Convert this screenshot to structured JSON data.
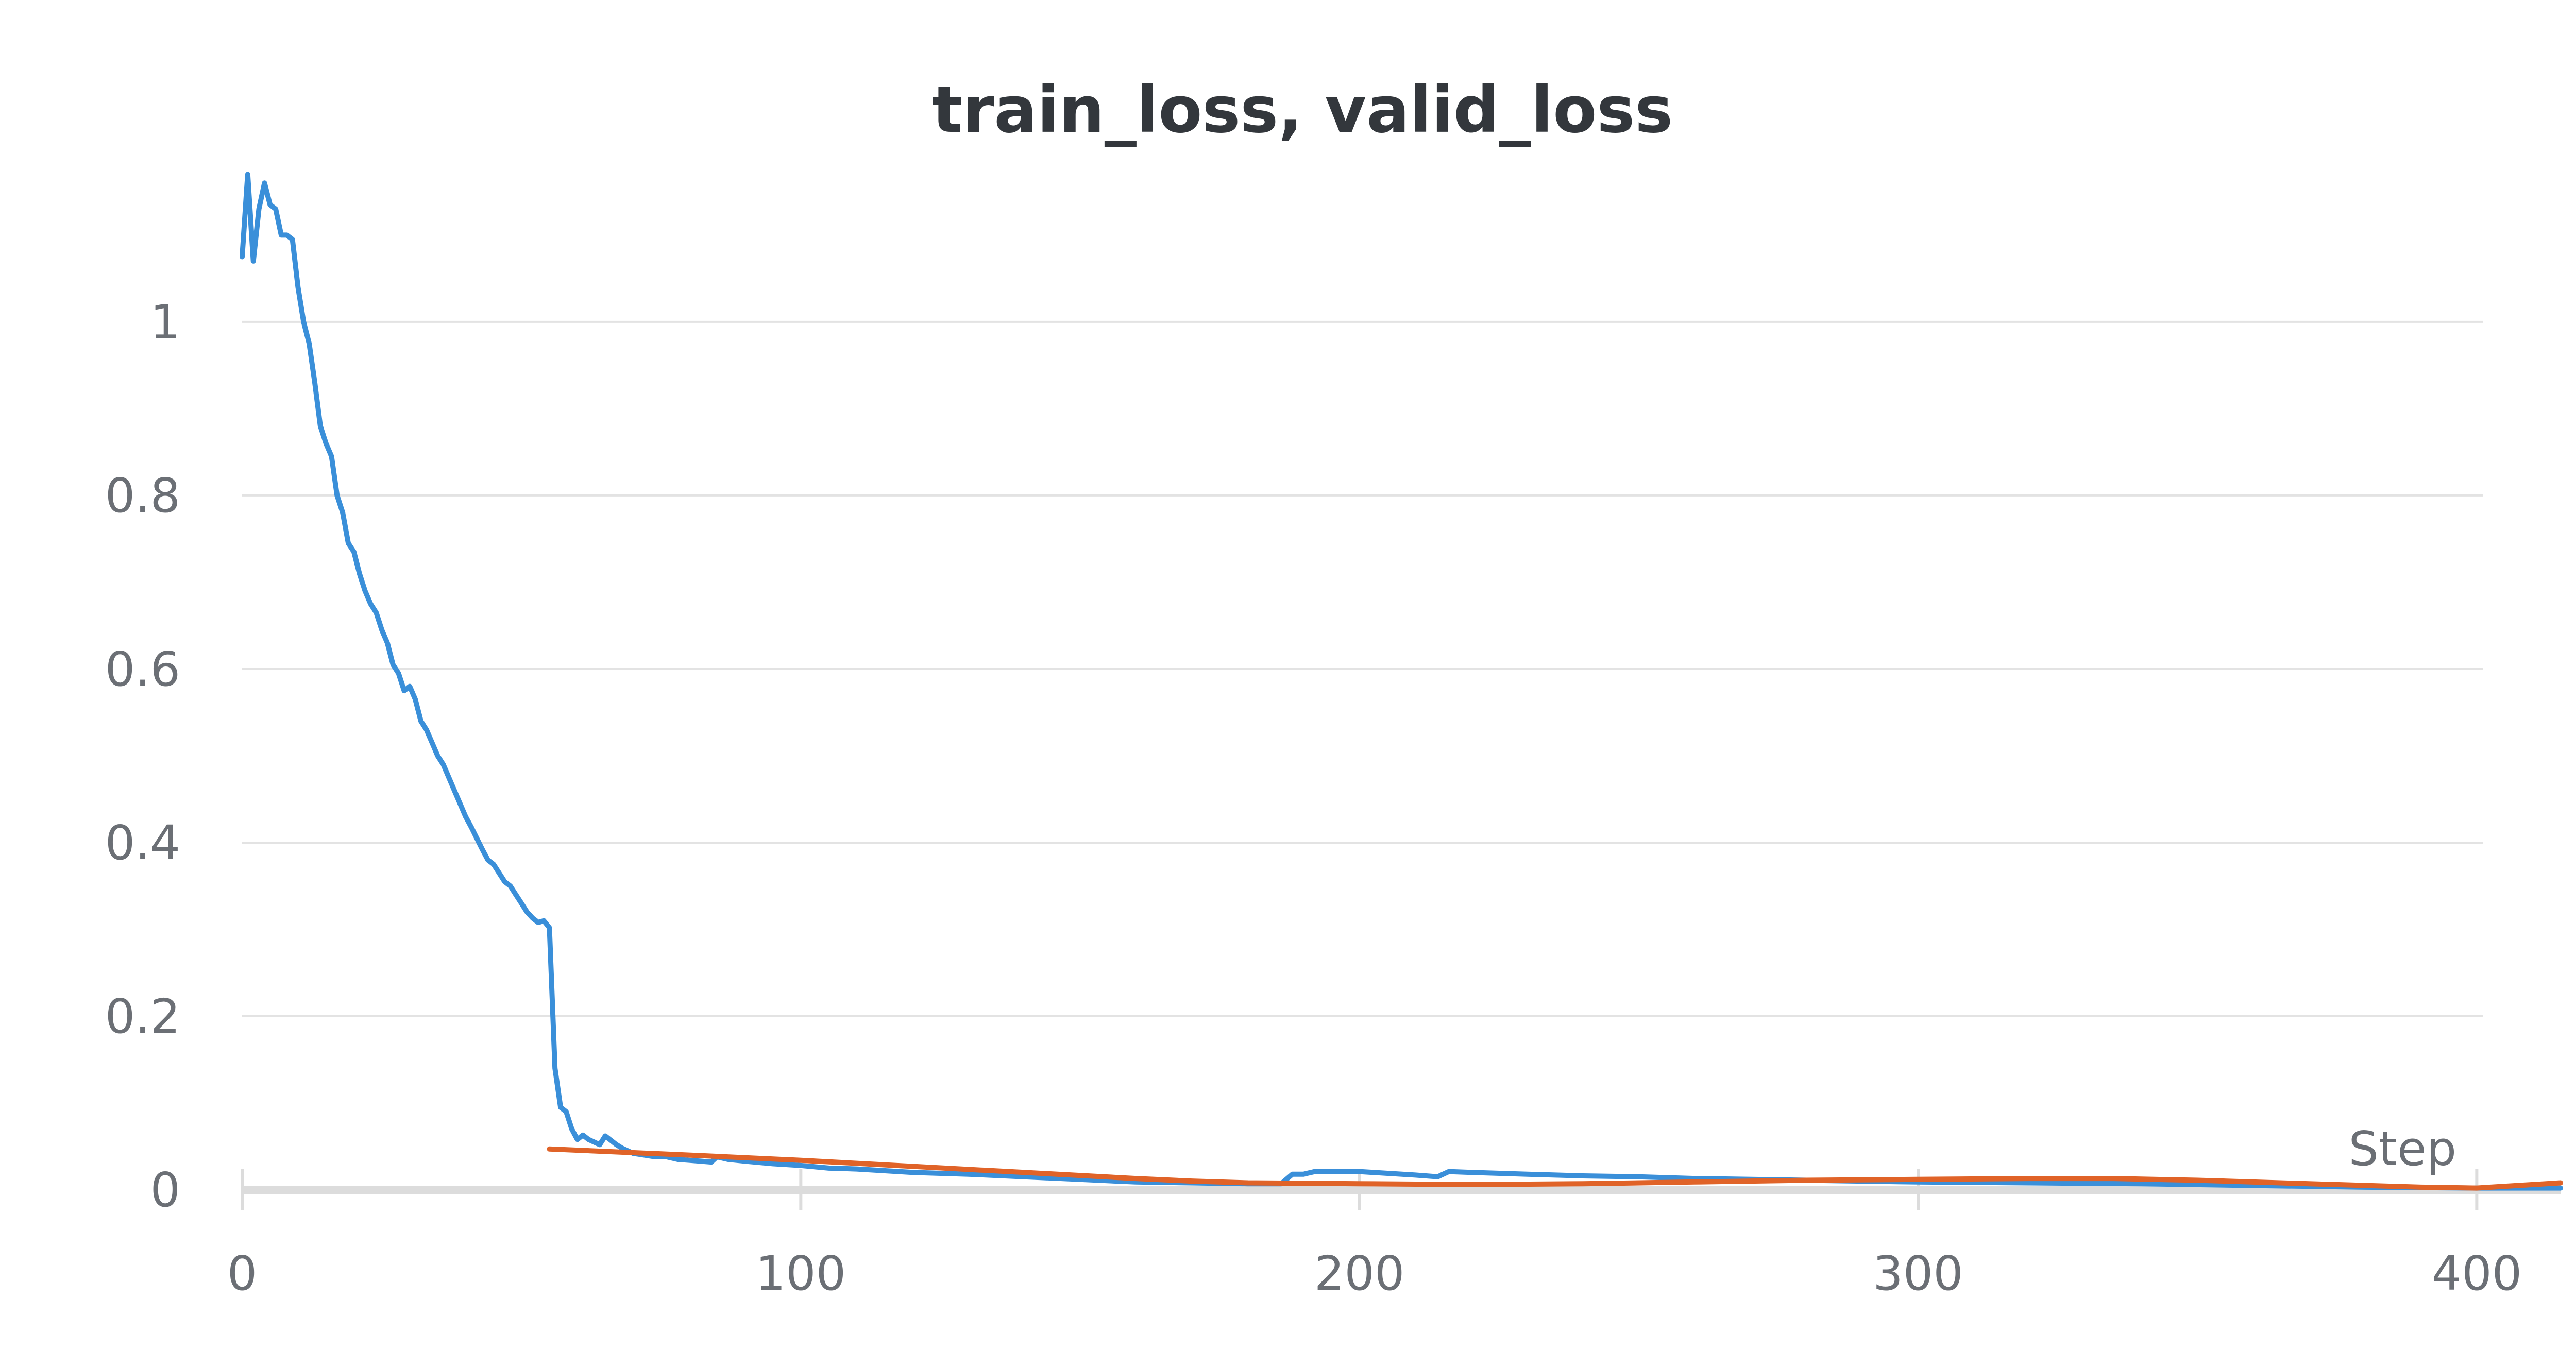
{
  "chart_data": {
    "type": "line",
    "title": "train_loss, valid_loss",
    "xlabel": "Step",
    "ylabel": "",
    "xlim": [
      0,
      415
    ],
    "ylim": [
      0,
      1.175
    ],
    "x_ticks": [
      0,
      100,
      200,
      300,
      400
    ],
    "y_ticks": [
      0,
      0.2,
      0.4,
      0.6,
      0.8,
      1
    ],
    "x_tick_labels": [
      "0",
      "100",
      "200",
      "300",
      "400"
    ],
    "y_tick_labels": [
      "0",
      "0.2",
      "0.4",
      "0.6",
      "0.8",
      "1"
    ],
    "grid": true,
    "legend": "none",
    "series": [
      {
        "color": "#3a8fd9",
        "x": [
          0,
          1,
          2,
          3,
          4,
          5,
          6,
          7,
          8,
          9,
          10,
          11,
          12,
          13,
          14,
          15,
          16,
          17,
          18,
          19,
          20,
          21,
          22,
          23,
          24,
          25,
          26,
          27,
          28,
          29,
          30,
          31,
          32,
          33,
          34,
          35,
          36,
          37,
          38,
          39,
          40,
          41,
          42,
          43,
          44,
          45,
          46,
          47,
          48,
          49,
          50,
          51,
          52,
          53,
          54,
          55,
          56,
          57,
          58,
          59,
          60,
          61,
          62,
          63,
          64,
          65,
          66,
          67,
          68,
          70,
          72,
          74,
          76,
          78,
          80,
          82,
          84,
          85,
          87,
          90,
          95,
          100,
          105,
          110,
          120,
          130,
          140,
          150,
          160,
          170,
          180,
          186,
          188,
          190,
          192,
          195,
          200,
          205,
          210,
          214,
          216,
          220,
          230,
          240,
          250,
          260,
          280,
          300,
          320,
          340,
          360,
          380,
          400,
          415
        ],
        "y": [
          1.075,
          1.17,
          1.07,
          1.13,
          1.16,
          1.135,
          1.13,
          1.1,
          1.1,
          1.095,
          1.04,
          1.0,
          0.975,
          0.93,
          0.88,
          0.86,
          0.845,
          0.8,
          0.78,
          0.745,
          0.735,
          0.71,
          0.69,
          0.675,
          0.665,
          0.645,
          0.63,
          0.605,
          0.595,
          0.575,
          0.58,
          0.565,
          0.54,
          0.53,
          0.515,
          0.5,
          0.49,
          0.475,
          0.46,
          0.445,
          0.43,
          0.418,
          0.405,
          0.392,
          0.38,
          0.375,
          0.365,
          0.355,
          0.35,
          0.34,
          0.33,
          0.32,
          0.313,
          0.308,
          0.31,
          0.302,
          0.14,
          0.095,
          0.09,
          0.07,
          0.058,
          0.063,
          0.058,
          0.055,
          0.052,
          0.062,
          0.057,
          0.052,
          0.048,
          0.042,
          0.04,
          0.038,
          0.038,
          0.035,
          0.034,
          0.033,
          0.032,
          0.038,
          0.035,
          0.033,
          0.03,
          0.028,
          0.025,
          0.024,
          0.02,
          0.018,
          0.015,
          0.012,
          0.009,
          0.008,
          0.007,
          0.007,
          0.018,
          0.018,
          0.021,
          0.021,
          0.021,
          0.019,
          0.017,
          0.015,
          0.021,
          0.02,
          0.018,
          0.016,
          0.015,
          0.013,
          0.011,
          0.009,
          0.008,
          0.007,
          0.005,
          0.003,
          0.002,
          0.002
        ]
      },
      {
        "color": "#e06328",
        "x": [
          55,
          80,
          100,
          120,
          140,
          160,
          170,
          180,
          200,
          220,
          240,
          260,
          280,
          300,
          320,
          335,
          350,
          370,
          390,
          400,
          415
        ],
        "y": [
          0.047,
          0.04,
          0.034,
          0.027,
          0.02,
          0.013,
          0.01,
          0.008,
          0.007,
          0.006,
          0.007,
          0.009,
          0.011,
          0.012,
          0.013,
          0.013,
          0.011,
          0.007,
          0.003,
          0.002,
          0.008
        ]
      }
    ]
  }
}
